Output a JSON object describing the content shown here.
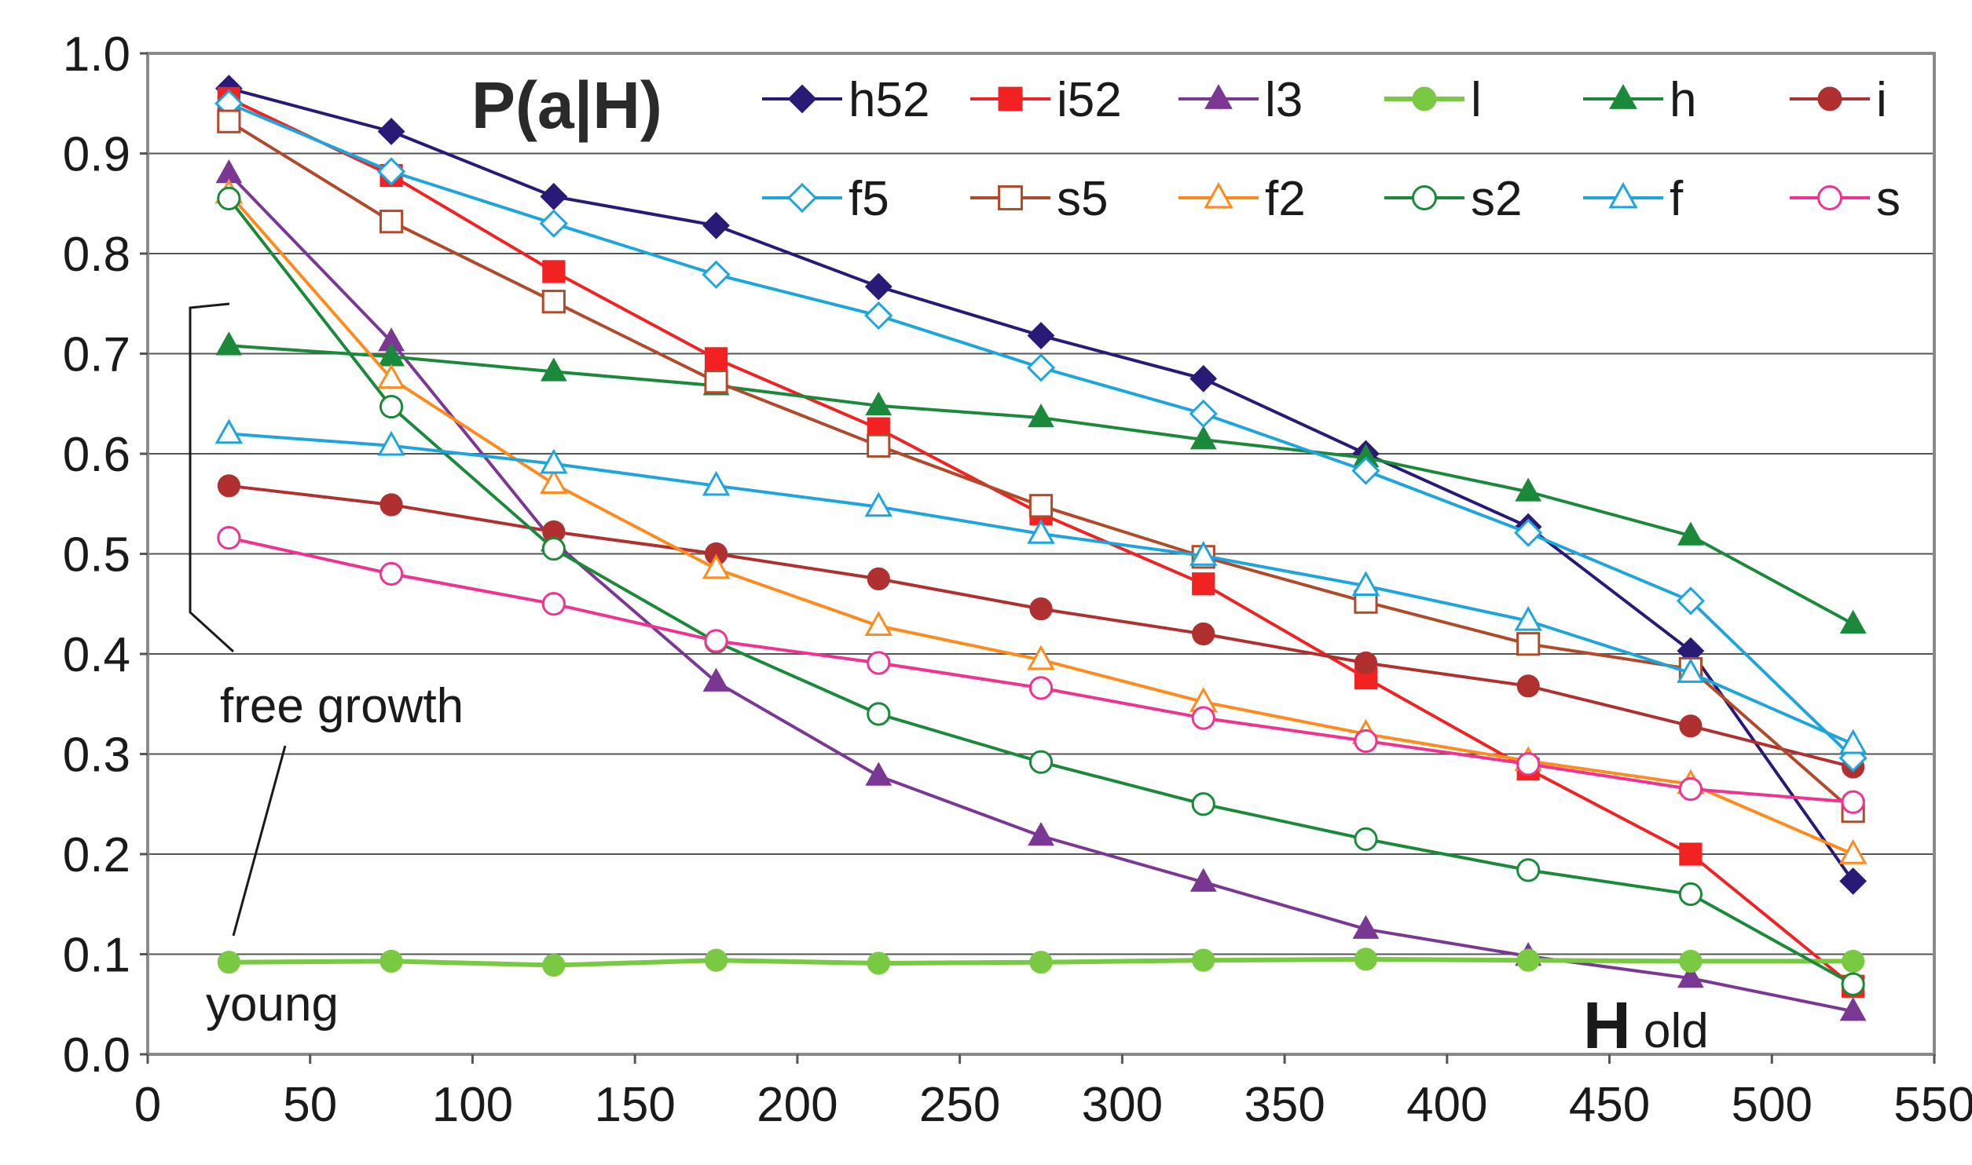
{
  "chart_data": {
    "type": "line",
    "title": "P(a|H)",
    "xlabel": "H",
    "ylabel": "",
    "xlim": [
      0,
      550
    ],
    "ylim": [
      0.0,
      1.0
    ],
    "x_ticks": [
      "0",
      "50",
      "100",
      "150",
      "200",
      "250",
      "300",
      "350",
      "400",
      "450",
      "500",
      "550"
    ],
    "y_ticks": [
      "0.0",
      "0.1",
      "0.2",
      "0.3",
      "0.4",
      "0.5",
      "0.6",
      "0.7",
      "0.8",
      "0.9",
      "1.0"
    ],
    "grid": "horizontal",
    "legend_position": "top",
    "x": [
      25,
      75,
      125,
      175,
      225,
      275,
      325,
      375,
      425,
      475,
      525
    ],
    "series": [
      {
        "name": "h52",
        "color": "#2a1a78",
        "marker": "diamond",
        "filled": true,
        "values": [
          0.965,
          0.922,
          0.857,
          0.828,
          0.767,
          0.718,
          0.675,
          0.6,
          0.527,
          0.403,
          0.173
        ]
      },
      {
        "name": "i52",
        "color": "#f22222",
        "marker": "square",
        "filled": true,
        "values": [
          0.955,
          0.878,
          0.782,
          0.695,
          0.625,
          0.54,
          0.47,
          0.376,
          0.285,
          0.2,
          0.068
        ]
      },
      {
        "name": "l3",
        "color": "#7b3794",
        "marker": "triangle",
        "filled": true,
        "values": [
          0.88,
          0.712,
          0.512,
          0.372,
          0.278,
          0.218,
          0.172,
          0.125,
          0.098,
          0.076,
          0.043
        ]
      },
      {
        "name": "l",
        "color": "#7ac943",
        "marker": "circle",
        "filled": true,
        "values": [
          0.092,
          0.093,
          0.089,
          0.094,
          0.091,
          0.092,
          0.094,
          0.095,
          0.094,
          0.093,
          0.093
        ]
      },
      {
        "name": "h",
        "color": "#1a8a3a",
        "marker": "triangle",
        "filled": true,
        "values": [
          0.708,
          0.697,
          0.682,
          0.668,
          0.648,
          0.636,
          0.614,
          0.596,
          0.562,
          0.518,
          0.43
        ]
      },
      {
        "name": "i",
        "color": "#b03030",
        "marker": "circle",
        "filled": true,
        "values": [
          0.568,
          0.549,
          0.522,
          0.5,
          0.475,
          0.445,
          0.42,
          0.391,
          0.368,
          0.328,
          0.287
        ]
      },
      {
        "name": "f5",
        "color": "#1ea6dc",
        "marker": "diamond",
        "filled": false,
        "values": [
          0.95,
          0.882,
          0.83,
          0.779,
          0.738,
          0.686,
          0.64,
          0.583,
          0.521,
          0.453,
          0.296
        ]
      },
      {
        "name": "s5",
        "color": "#b04a2a",
        "marker": "square",
        "filled": false,
        "values": [
          0.932,
          0.832,
          0.752,
          0.672,
          0.608,
          0.548,
          0.497,
          0.452,
          0.41,
          0.385,
          0.243
        ]
      },
      {
        "name": "f2",
        "color": "#ff8a1e",
        "marker": "triangle",
        "filled": false,
        "values": [
          0.86,
          0.675,
          0.57,
          0.485,
          0.428,
          0.394,
          0.352,
          0.32,
          0.293,
          0.27,
          0.2
        ]
      },
      {
        "name": "s2",
        "color": "#1a8a3a",
        "marker": "circle",
        "filled": false,
        "values": [
          0.855,
          0.647,
          0.505,
          0.412,
          0.34,
          0.292,
          0.25,
          0.215,
          0.184,
          0.16,
          0.07
        ]
      },
      {
        "name": "f",
        "color": "#1ea6dc",
        "marker": "triangle",
        "filled": false,
        "values": [
          0.62,
          0.608,
          0.59,
          0.568,
          0.547,
          0.52,
          0.498,
          0.468,
          0.433,
          0.381,
          0.31
        ]
      },
      {
        "name": "s",
        "color": "#ee3393",
        "marker": "circle",
        "filled": false,
        "values": [
          0.516,
          0.48,
          0.45,
          0.413,
          0.391,
          0.366,
          0.336,
          0.313,
          0.29,
          0.265,
          0.252
        ]
      }
    ],
    "annotations": [
      "free growth",
      "young",
      "old"
    ]
  }
}
